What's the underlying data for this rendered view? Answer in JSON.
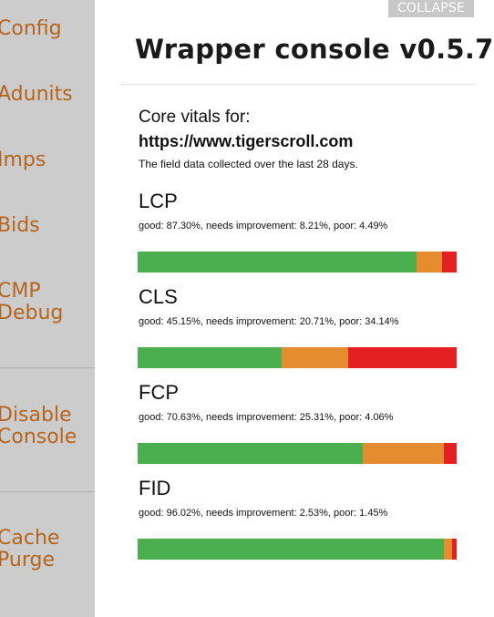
{
  "sidebar": {
    "items": [
      {
        "label": "Config"
      },
      {
        "label": "Adunits"
      },
      {
        "label": "Imps"
      },
      {
        "label": "Bids"
      },
      {
        "label": "CMP\nDebug"
      },
      {
        "label": "Disable\nConsole"
      },
      {
        "label": "Cache\nPurge"
      }
    ]
  },
  "header": {
    "collapse_label": "COLLAPSE",
    "title": "Wrapper console v0.5.7"
  },
  "core_vitals": {
    "label": "Core vitals for:",
    "url": "https://www.tigerscroll.com",
    "note": "The field data collected over the last 28 days."
  },
  "metrics": [
    {
      "name": "LCP",
      "stats": "good: 87.30%, needs improvement: 8.21%, poor: 4.49%",
      "good": 87.3,
      "needs_improvement": 8.21,
      "poor": 4.49
    },
    {
      "name": "CLS",
      "stats": "good: 45.15%, needs improvement: 20.71%, poor: 34.14%",
      "good": 45.15,
      "needs_improvement": 20.71,
      "poor": 34.14
    },
    {
      "name": "FCP",
      "stats": "good: 70.63%, needs improvement: 25.31%, poor: 4.06%",
      "good": 70.63,
      "needs_improvement": 25.31,
      "poor": 4.06
    },
    {
      "name": "FID",
      "stats": "good: 96.02%, needs improvement: 2.53%, poor: 1.45%",
      "good": 96.02,
      "needs_improvement": 2.53,
      "poor": 1.45
    }
  ],
  "colors": {
    "good": "#4caf4f",
    "needs_improvement": "#e48c2f",
    "poor": "#e42023",
    "sidebar_text": "#b5651d",
    "sidebar_bg": "#cccccc"
  }
}
